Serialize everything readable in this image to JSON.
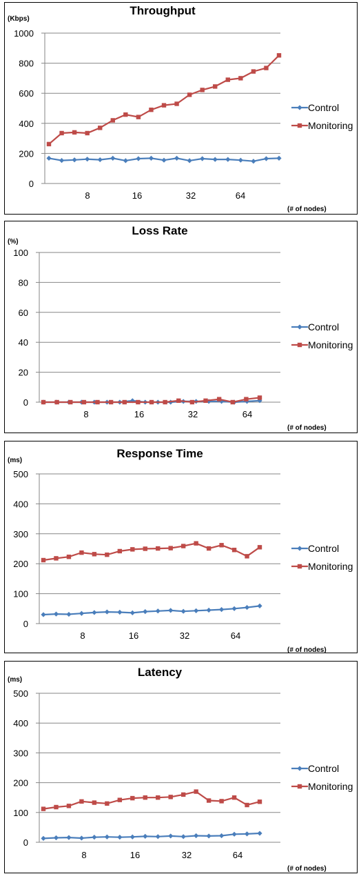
{
  "colors": {
    "control": "#4a7ebb",
    "monitoring": "#be4b48",
    "grid": "#868686",
    "axis": "#868686"
  },
  "chart_data": [
    {
      "type": "line",
      "title": "Throughput",
      "ylabel": "(Kbps)",
      "xlabel": "(# of nodes)",
      "ylim": [
        0,
        1000
      ],
      "yticks": [
        0,
        200,
        400,
        600,
        800,
        1000
      ],
      "xtick_labels": [
        {
          "label": "8",
          "at": 4
        },
        {
          "label": "16",
          "at": 9
        },
        {
          "label": "32",
          "at": 14
        },
        {
          "label": "64",
          "at": 19
        }
      ],
      "n_points": 23,
      "legend": "right",
      "grid": true,
      "series": [
        {
          "name": "Control",
          "marker": "diamond",
          "values": [
            168,
            153,
            157,
            162,
            158,
            168,
            152,
            165,
            168,
            155,
            168,
            152,
            165,
            160,
            160,
            155,
            148,
            165,
            168
          ]
        },
        {
          "name": "Monitoring",
          "marker": "square",
          "values": [
            262,
            335,
            340,
            335,
            370,
            420,
            458,
            442,
            490,
            520,
            530,
            590,
            622,
            645,
            690,
            700,
            745,
            768,
            852
          ]
        }
      ]
    },
    {
      "type": "line",
      "title": "Loss Rate",
      "ylabel": "(%)",
      "xlabel": "(# of nodes)",
      "ylim": [
        0,
        100
      ],
      "yticks": [
        0,
        20,
        40,
        60,
        80,
        100
      ],
      "xtick_labels": [
        {
          "label": "8",
          "at": 4
        },
        {
          "label": "16",
          "at": 9
        },
        {
          "label": "32",
          "at": 14
        },
        {
          "label": "64",
          "at": 19
        }
      ],
      "n_points": 20,
      "legend": "right",
      "grid": true,
      "series": [
        {
          "name": "Control",
          "marker": "diamond",
          "values": [
            0,
            0,
            0,
            0,
            0,
            0,
            0,
            1,
            0,
            0,
            0,
            0.5,
            0.5,
            0.5,
            0.5,
            0,
            0.5,
            1
          ]
        },
        {
          "name": "Monitoring",
          "marker": "square",
          "values": [
            0,
            0,
            0,
            0,
            0,
            0,
            0,
            0,
            0,
            0,
            1,
            0,
            1,
            2,
            0,
            2,
            3
          ]
        }
      ]
    },
    {
      "type": "line",
      "title": "Response Time",
      "ylabel": "(ms)",
      "xlabel": "(# of nodes)",
      "ylim": [
        0,
        500
      ],
      "yticks": [
        0,
        100,
        200,
        300,
        400,
        500
      ],
      "xtick_labels": [
        {
          "label": "8",
          "at": 4
        },
        {
          "label": "16",
          "at": 9
        },
        {
          "label": "32",
          "at": 14
        },
        {
          "label": "64",
          "at": 19
        }
      ],
      "n_points": 23,
      "legend": "right",
      "grid": true,
      "series": [
        {
          "name": "Control",
          "marker": "diamond",
          "values": [
            30,
            32,
            31,
            34,
            37,
            39,
            38,
            36,
            40,
            42,
            44,
            41,
            43,
            45,
            47,
            50,
            54,
            59
          ]
        },
        {
          "name": "Monitoring",
          "marker": "square",
          "values": [
            212,
            218,
            223,
            237,
            232,
            230,
            242,
            248,
            250,
            251,
            252,
            259,
            268,
            251,
            262,
            246,
            225,
            255
          ]
        }
      ]
    },
    {
      "type": "line",
      "title": "Latency",
      "ylabel": "(ms)",
      "xlabel": "(# of nodes)",
      "ylim": [
        0,
        500
      ],
      "yticks": [
        0,
        100,
        200,
        300,
        400,
        500
      ],
      "xtick_labels": [
        {
          "label": "8",
          "at": 4
        },
        {
          "label": "16",
          "at": 9
        },
        {
          "label": "32",
          "at": 14
        },
        {
          "label": "64",
          "at": 19
        }
      ],
      "n_points": 23,
      "legend": "right",
      "grid": true,
      "series": [
        {
          "name": "Control",
          "marker": "diamond",
          "values": [
            13,
            15,
            16,
            14,
            17,
            18,
            17,
            18,
            20,
            19,
            21,
            19,
            22,
            21,
            22,
            27,
            28,
            30
          ]
        },
        {
          "name": "Monitoring",
          "marker": "square",
          "values": [
            112,
            118,
            122,
            137,
            133,
            130,
            142,
            148,
            150,
            150,
            152,
            160,
            170,
            140,
            138,
            150,
            125,
            136
          ]
        }
      ]
    }
  ]
}
